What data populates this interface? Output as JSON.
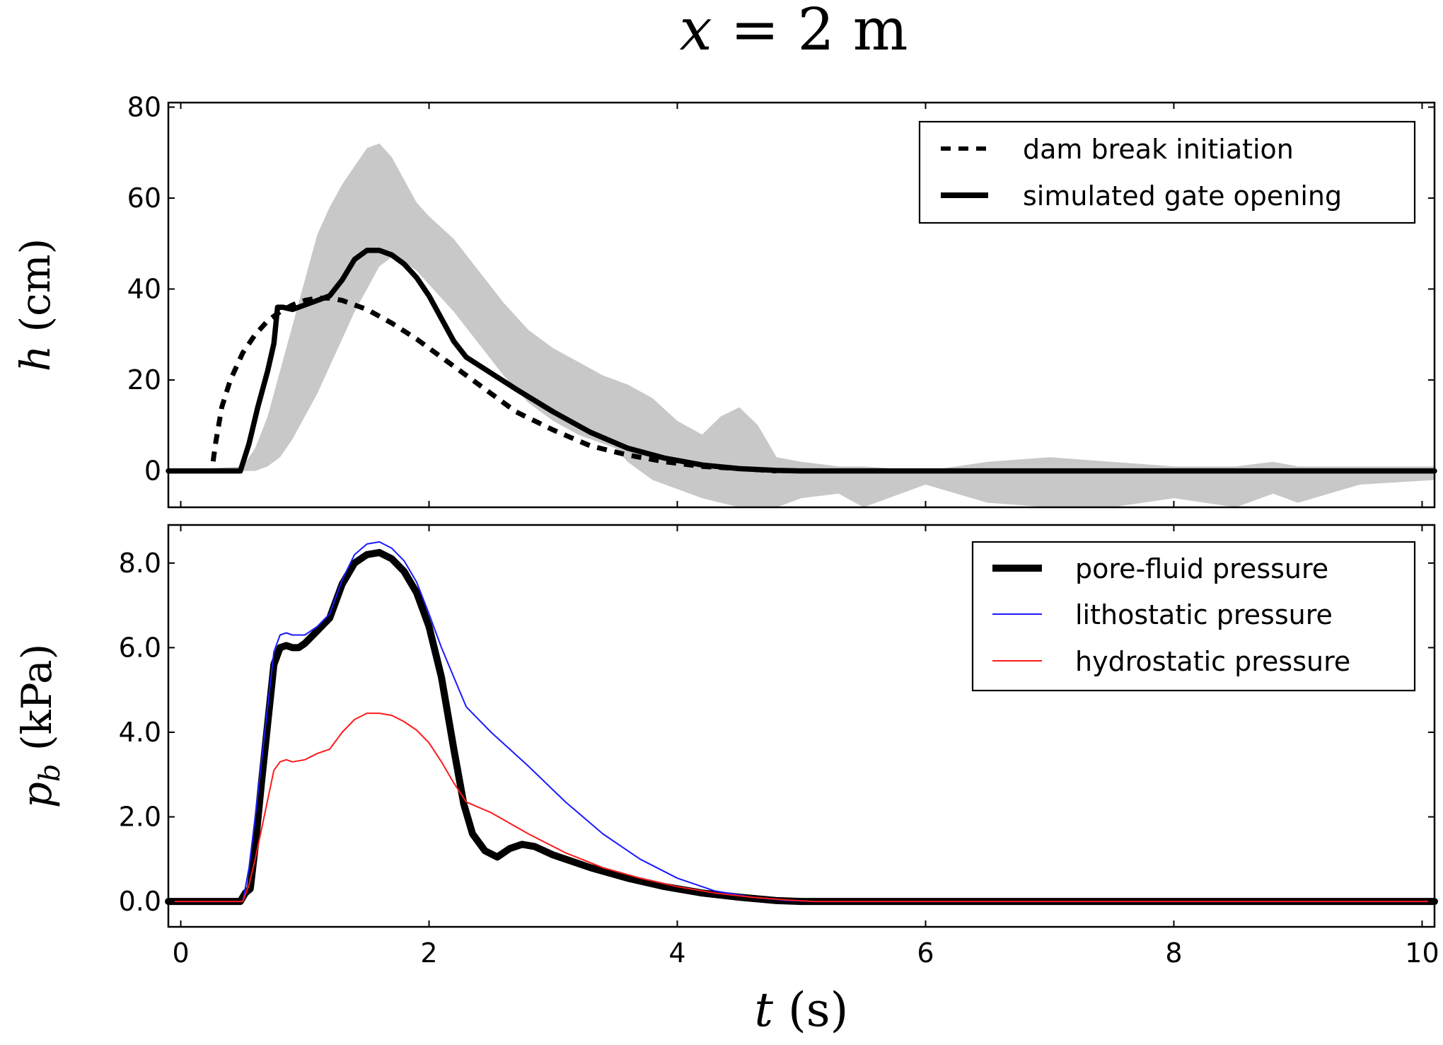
{
  "title": {
    "var": "x",
    "rest": " = 2 m"
  },
  "xlabel": {
    "var": "t",
    "rest": " (s)"
  },
  "chart_data": [
    {
      "type": "line",
      "ylabel": {
        "var": "h",
        "rest": " (cm)"
      },
      "xlim": [
        -0.1,
        10.1
      ],
      "ylim": [
        -8,
        81
      ],
      "xticks": [
        0,
        2,
        4,
        6,
        8,
        10
      ],
      "yticks": [
        0,
        20,
        40,
        60,
        80
      ],
      "ytick_labels": [
        "0",
        "20",
        "40",
        "60",
        "80"
      ],
      "legend_position": "top-right",
      "band": {
        "color": "#c8c8c8",
        "x": [
          -0.1,
          0.5,
          0.6,
          0.7,
          0.8,
          0.9,
          1.0,
          1.1,
          1.2,
          1.3,
          1.4,
          1.5,
          1.6,
          1.7,
          1.8,
          1.9,
          2.0,
          2.2,
          2.4,
          2.6,
          2.8,
          3.0,
          3.2,
          3.4,
          3.5,
          3.6,
          3.8,
          4.0,
          4.2,
          4.35,
          4.5,
          4.65,
          4.8,
          5.0,
          5.3,
          5.5,
          6.0,
          6.5,
          7.0,
          7.5,
          8.0,
          8.5,
          8.8,
          9.0,
          9.5,
          10.1
        ],
        "upper": [
          0,
          1,
          5,
          12,
          22,
          32,
          42,
          52,
          58,
          63,
          67,
          71,
          72,
          69,
          64,
          59,
          56,
          51,
          44,
          37,
          31,
          27,
          24,
          21,
          20,
          19,
          16,
          11,
          8,
          12,
          14,
          10,
          3,
          2,
          1,
          1,
          0,
          2,
          3,
          2,
          1,
          1,
          2,
          1,
          1,
          1
        ],
        "lower": [
          0,
          0,
          0,
          1,
          3,
          7,
          12,
          17,
          23,
          29,
          35,
          40,
          45,
          47,
          46,
          44,
          41,
          35,
          28,
          21,
          15,
          11,
          8,
          6,
          5,
          2,
          -2,
          -4,
          -6,
          -7,
          -8,
          -8,
          -8,
          -6,
          -5,
          -8,
          -3,
          -7,
          -8,
          -8,
          -6,
          -8,
          -5,
          -7,
          -3,
          -2
        ]
      },
      "series": [
        {
          "name": "dam break initiation",
          "color": "#000000",
          "style": "dashed",
          "width": "medium",
          "x": [
            -0.1,
            0.25,
            0.28,
            0.33,
            0.4,
            0.5,
            0.6,
            0.7,
            0.8,
            0.9,
            1.0,
            1.1,
            1.2,
            1.3,
            1.5,
            1.7,
            1.9,
            2.1,
            2.3,
            2.5,
            2.7,
            3.0,
            3.3,
            3.6,
            3.9,
            4.2,
            4.5,
            4.8
          ],
          "y": [
            0,
            0,
            6,
            14,
            20,
            26,
            30,
            33,
            35,
            36.5,
            37.5,
            38,
            38,
            37.5,
            35.5,
            32.5,
            29,
            25,
            21,
            17,
            13,
            9,
            5.5,
            3.5,
            2,
            1,
            0.5,
            0
          ]
        },
        {
          "name": "simulated gate opening",
          "color": "#000000",
          "style": "solid",
          "width": "thick",
          "x": [
            -0.1,
            0.48,
            0.55,
            0.62,
            0.7,
            0.75,
            0.78,
            0.82,
            0.9,
            1.0,
            1.1,
            1.2,
            1.3,
            1.4,
            1.5,
            1.6,
            1.7,
            1.8,
            1.9,
            2.0,
            2.1,
            2.2,
            2.3,
            2.5,
            2.7,
            3.0,
            3.3,
            3.6,
            3.9,
            4.2,
            4.5,
            4.8,
            5.0,
            10.1
          ],
          "y": [
            0,
            0,
            6,
            14,
            22,
            28,
            36,
            36,
            35.5,
            36.5,
            37.5,
            38.5,
            42,
            46.5,
            48.5,
            48.5,
            47.5,
            45.5,
            42.5,
            38.5,
            33.5,
            28.5,
            25,
            21.5,
            18,
            13,
            8.5,
            5,
            2.8,
            1.3,
            0.5,
            0.1,
            0,
            0
          ]
        }
      ]
    },
    {
      "type": "line",
      "ylabel": {
        "var": "p",
        "sub": "b",
        "rest": " (kPa)"
      },
      "xlim": [
        -0.1,
        10.1
      ],
      "ylim": [
        -0.6,
        8.9
      ],
      "xticks": [
        0,
        2,
        4,
        6,
        8,
        10
      ],
      "xtick_labels": [
        "0",
        "2",
        "4",
        "6",
        "8",
        "10"
      ],
      "yticks": [
        0,
        2,
        4,
        6,
        8
      ],
      "ytick_labels": [
        "0.0",
        "2.0",
        "4.0",
        "6.0",
        "8.0"
      ],
      "legend_position": "top-right",
      "series": [
        {
          "name": "pore-fluid pressure",
          "color": "#000000",
          "style": "solid",
          "width": "extra-thick",
          "x": [
            -0.1,
            0.48,
            0.52,
            0.56,
            0.6,
            0.65,
            0.7,
            0.75,
            0.8,
            0.85,
            0.9,
            0.95,
            1.0,
            1.1,
            1.2,
            1.3,
            1.4,
            1.5,
            1.6,
            1.7,
            1.8,
            1.9,
            2.0,
            2.1,
            2.2,
            2.28,
            2.35,
            2.45,
            2.55,
            2.65,
            2.75,
            2.85,
            3.0,
            3.3,
            3.6,
            3.9,
            4.2,
            4.5,
            4.8,
            5.0,
            10.1
          ],
          "y": [
            0,
            0,
            0.2,
            0.3,
            1.3,
            2.8,
            4.2,
            5.6,
            6.0,
            6.05,
            6.0,
            6.0,
            6.1,
            6.4,
            6.7,
            7.5,
            8.0,
            8.2,
            8.25,
            8.1,
            7.8,
            7.3,
            6.5,
            5.3,
            3.6,
            2.3,
            1.6,
            1.2,
            1.05,
            1.25,
            1.35,
            1.3,
            1.1,
            0.8,
            0.55,
            0.35,
            0.2,
            0.1,
            0.02,
            0,
            0
          ]
        },
        {
          "name": "lithostatic pressure",
          "color": "#1a1aff",
          "style": "solid",
          "width": "thin",
          "x": [
            -0.1,
            0.5,
            0.55,
            0.6,
            0.65,
            0.7,
            0.75,
            0.8,
            0.85,
            0.9,
            1.0,
            1.1,
            1.2,
            1.3,
            1.4,
            1.5,
            1.6,
            1.7,
            1.8,
            1.9,
            2.0,
            2.1,
            2.2,
            2.3,
            2.5,
            2.8,
            3.1,
            3.4,
            3.7,
            4.0,
            4.3,
            4.6,
            4.9,
            5.1,
            10.1
          ],
          "y": [
            0,
            0,
            0.8,
            2.0,
            3.3,
            4.6,
            5.9,
            6.3,
            6.35,
            6.3,
            6.3,
            6.5,
            6.8,
            7.6,
            8.2,
            8.45,
            8.5,
            8.35,
            8.05,
            7.55,
            6.8,
            6.0,
            5.3,
            4.6,
            4.0,
            3.2,
            2.35,
            1.6,
            1.0,
            0.55,
            0.25,
            0.1,
            0.02,
            0,
            0
          ]
        },
        {
          "name": "hydrostatic pressure",
          "color": "#ff1a1a",
          "style": "solid",
          "width": "thin",
          "x": [
            -0.1,
            0.5,
            0.55,
            0.6,
            0.65,
            0.7,
            0.75,
            0.8,
            0.85,
            0.9,
            1.0,
            1.1,
            1.2,
            1.3,
            1.4,
            1.5,
            1.6,
            1.7,
            1.8,
            1.9,
            2.0,
            2.1,
            2.2,
            2.3,
            2.5,
            2.8,
            3.1,
            3.4,
            3.7,
            4.0,
            4.3,
            4.6,
            4.9,
            5.1,
            10.1
          ],
          "y": [
            0,
            0,
            0.4,
            1.0,
            1.7,
            2.4,
            3.1,
            3.3,
            3.35,
            3.3,
            3.35,
            3.5,
            3.6,
            4.0,
            4.3,
            4.45,
            4.45,
            4.4,
            4.25,
            4.05,
            3.75,
            3.3,
            2.8,
            2.35,
            2.1,
            1.6,
            1.15,
            0.8,
            0.55,
            0.35,
            0.2,
            0.1,
            0.03,
            0,
            0
          ]
        }
      ]
    }
  ]
}
